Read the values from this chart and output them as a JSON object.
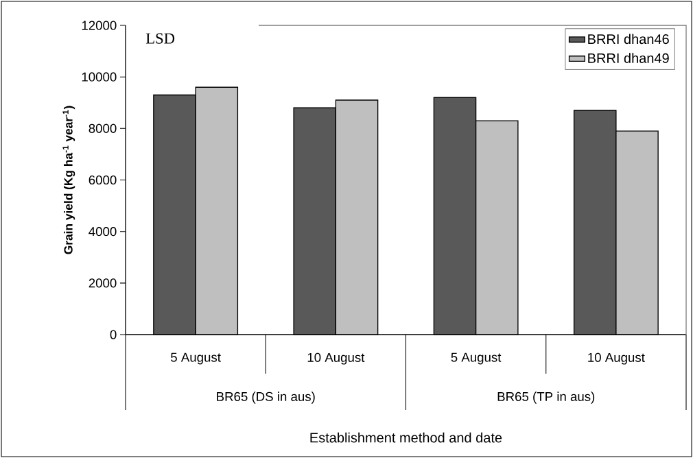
{
  "chart_data": {
    "type": "bar",
    "ylabel": "Grain yield (Kg ha$^{-1}$ year$^{-1}$)",
    "xlabel": "Establishment method and date",
    "categories": [
      "5 August",
      "10 August",
      "5 August",
      "10 August"
    ],
    "series": [
      {
        "name": "BRRI dhan46",
        "color": "#595959",
        "values": [
          9300,
          8800,
          9200,
          8700
        ]
      },
      {
        "name": "BRRI dhan49",
        "color": "#bfbfbf",
        "values": [
          9600,
          9100,
          8300,
          7900
        ]
      }
    ],
    "ylim": [
      0,
      12000
    ],
    "yticks": [
      0,
      2000,
      4000,
      6000,
      8000,
      10000,
      12000
    ],
    "legend": "top right",
    "grid": false,
    "annotations": [
      "LSD",
      "BR65 (DS in aus)",
      "BR65 (TP in aus)"
    ]
  }
}
